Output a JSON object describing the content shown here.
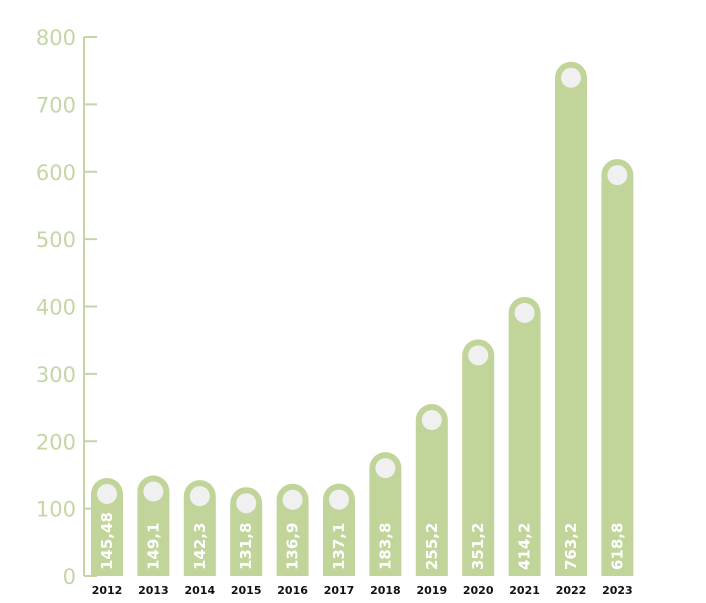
{
  "chart_data": {
    "type": "bar",
    "categories": [
      "2012",
      "2013",
      "2014",
      "2015",
      "2016",
      "2017",
      "2018",
      "2019",
      "2020",
      "2021",
      "2022",
      "2023"
    ],
    "values": [
      145.48,
      149.1,
      142.3,
      131.8,
      136.9,
      137.1,
      183.8,
      255.2,
      351.2,
      414.2,
      763.2,
      618.8
    ],
    "value_labels": [
      "145,48",
      "149,1",
      "142,3",
      "131,8",
      "136,9",
      "137,1",
      "183,8",
      "255,2",
      "351,2",
      "414,2",
      "763,2",
      "618,8"
    ],
    "yticks": [
      0,
      100,
      200,
      300,
      400,
      500,
      600,
      700,
      800
    ],
    "ylim": [
      0,
      800
    ],
    "title": "",
    "xlabel": "",
    "ylabel": "",
    "grid": false,
    "colors": {
      "bar": "#c1d49a",
      "axis": "#c5d6a6",
      "dot": "#f0f0f0",
      "value_text": "#ffffff",
      "category_text": "#111111"
    }
  }
}
